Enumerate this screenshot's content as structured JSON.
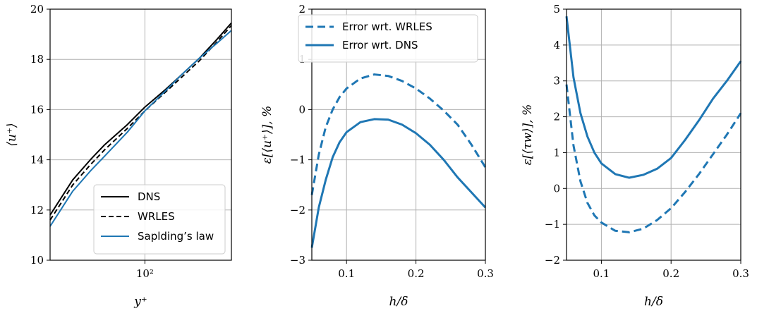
{
  "chart_data": [
    {
      "type": "line",
      "xscale": "log",
      "xlim": [
        30,
        300
      ],
      "ylim": [
        10,
        20
      ],
      "xticks": [
        100
      ],
      "xtick_labels": [
        "10²"
      ],
      "yticks": [
        10,
        12,
        14,
        16,
        18,
        20
      ],
      "ytick_labels": [
        "10",
        "12",
        "14",
        "16",
        "18",
        "20"
      ],
      "xlabel": "y⁺",
      "ylabel": "⟨u⁺⟩",
      "grid": true,
      "legend_position": "lower-right",
      "series": [
        {
          "name": "DNS",
          "color": "#000000",
          "style": "solid",
          "x": [
            30,
            40,
            50,
            60,
            80,
            100,
            130,
            160,
            200,
            250,
            300
          ],
          "y": [
            11.8,
            13.2,
            14.0,
            14.6,
            15.4,
            16.1,
            16.8,
            17.4,
            18.05,
            18.8,
            19.45
          ]
        },
        {
          "name": "WRLES",
          "color": "#000000",
          "style": "dashed",
          "x": [
            30,
            40,
            50,
            60,
            80,
            100,
            130,
            160,
            200,
            250,
            300
          ],
          "y": [
            11.6,
            13.0,
            13.8,
            14.4,
            15.25,
            15.95,
            16.7,
            17.3,
            17.95,
            18.7,
            19.35
          ]
        },
        {
          "name": "Sapldingʼs law",
          "color": "#1f77b4",
          "style": "solid",
          "x": [
            30,
            40,
            50,
            60,
            80,
            100,
            130,
            160,
            200,
            250,
            300
          ],
          "y": [
            11.35,
            12.75,
            13.55,
            14.15,
            15.1,
            15.95,
            16.75,
            17.4,
            18.05,
            18.65,
            19.15
          ]
        }
      ]
    },
    {
      "type": "line",
      "xlim": [
        0.05,
        0.3
      ],
      "ylim": [
        -3,
        2
      ],
      "xticks": [
        0.1,
        0.2,
        0.3
      ],
      "xtick_labels": [
        "0.1",
        "0.2",
        "0.3"
      ],
      "yticks": [
        -3,
        -2,
        -1,
        0,
        1,
        2
      ],
      "ytick_labels": [
        "−3",
        "−2",
        "−1",
        "0",
        "1",
        "2"
      ],
      "xlabel": "h/δ",
      "ylabel": "ε[⟨u⁺⟩], %",
      "grid": true,
      "legend_position": "top",
      "series": [
        {
          "name": "Error wrt. WRLES",
          "color": "#1f77b4",
          "style": "dashed",
          "x": [
            0.05,
            0.06,
            0.07,
            0.08,
            0.09,
            0.1,
            0.12,
            0.14,
            0.16,
            0.18,
            0.2,
            0.22,
            0.24,
            0.26,
            0.28,
            0.3
          ],
          "y": [
            -1.7,
            -0.9,
            -0.35,
            0.0,
            0.25,
            0.42,
            0.62,
            0.7,
            0.67,
            0.57,
            0.42,
            0.22,
            -0.02,
            -0.3,
            -0.7,
            -1.15
          ]
        },
        {
          "name": "Error wrt. DNS",
          "color": "#1f77b4",
          "style": "solid",
          "x": [
            0.05,
            0.06,
            0.07,
            0.08,
            0.09,
            0.1,
            0.12,
            0.14,
            0.16,
            0.18,
            0.2,
            0.22,
            0.24,
            0.26,
            0.28,
            0.3
          ],
          "y": [
            -2.75,
            -1.95,
            -1.4,
            -0.95,
            -0.65,
            -0.45,
            -0.25,
            -0.19,
            -0.2,
            -0.3,
            -0.47,
            -0.7,
            -1.0,
            -1.35,
            -1.65,
            -1.95
          ]
        }
      ]
    },
    {
      "type": "line",
      "xlim": [
        0.05,
        0.3
      ],
      "ylim": [
        -2,
        5
      ],
      "xticks": [
        0.1,
        0.2,
        0.3
      ],
      "xtick_labels": [
        "0.1",
        "0.2",
        "0.3"
      ],
      "yticks": [
        -2,
        -1,
        0,
        1,
        2,
        3,
        4,
        5
      ],
      "ytick_labels": [
        "−2",
        "−1",
        "0",
        "1",
        "2",
        "3",
        "4",
        "5"
      ],
      "xlabel": "h/δ",
      "ylabel": "ε[⟨τw⟩], %",
      "grid": true,
      "series": [
        {
          "name": "",
          "color": "#1f77b4",
          "style": "dashed",
          "x": [
            0.05,
            0.06,
            0.07,
            0.08,
            0.09,
            0.1,
            0.12,
            0.14,
            0.16,
            0.18,
            0.2,
            0.22,
            0.24,
            0.26,
            0.28,
            0.3
          ],
          "y": [
            2.9,
            1.2,
            0.2,
            -0.4,
            -0.75,
            -0.95,
            -1.18,
            -1.22,
            -1.12,
            -0.88,
            -0.55,
            -0.1,
            0.4,
            0.95,
            1.5,
            2.1
          ]
        },
        {
          "name": "",
          "color": "#1f77b4",
          "style": "solid",
          "x": [
            0.05,
            0.06,
            0.07,
            0.08,
            0.09,
            0.1,
            0.12,
            0.14,
            0.16,
            0.18,
            0.2,
            0.22,
            0.24,
            0.26,
            0.28,
            0.3
          ],
          "y": [
            4.8,
            3.1,
            2.1,
            1.45,
            1.0,
            0.7,
            0.4,
            0.3,
            0.38,
            0.55,
            0.85,
            1.35,
            1.9,
            2.5,
            3.0,
            3.55
          ]
        }
      ]
    }
  ]
}
